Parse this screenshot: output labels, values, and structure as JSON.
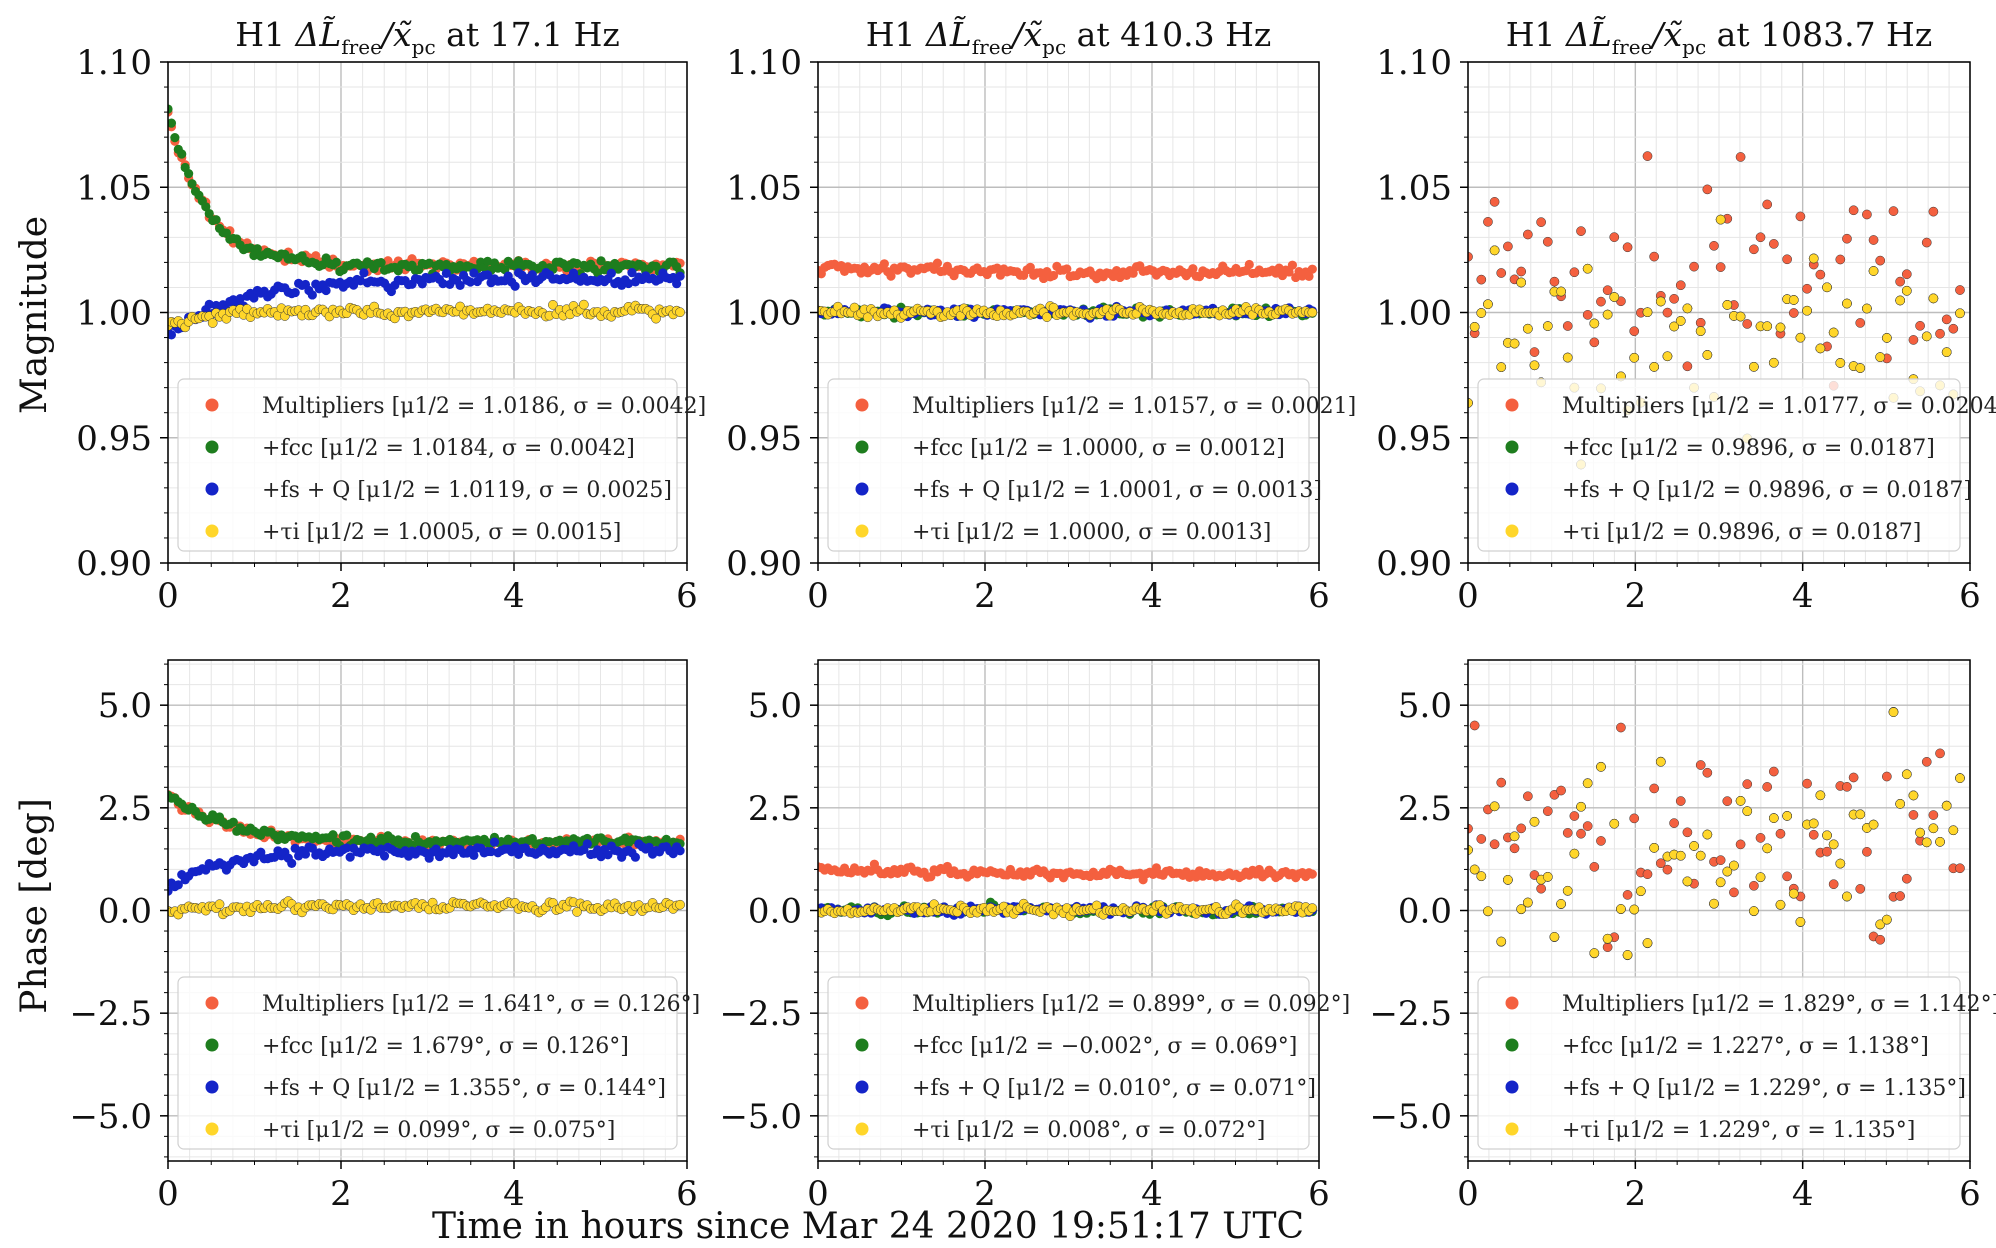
{
  "figure": {
    "xlabel": "Time in hours since Mar 24 2020 19:51:17 UTC",
    "ylabel_magnitude": "Magnitude",
    "ylabel_phase": "Phase [deg]"
  },
  "colors": {
    "multipliers": "#f4603f",
    "fcc": "#1e7d1e",
    "fs_q": "#1424c8",
    "tau": "#ffd62a",
    "grid_major": "#bdbdbd",
    "grid_minor": "#e6e6e6"
  },
  "chart_data": [
    {
      "type": "scatter",
      "title": "H1 ΔL̃_free/x̃_pc at 17.1 Hz",
      "row": "magnitude",
      "ylabel": "Magnitude",
      "xlim": [
        0,
        6
      ],
      "ylim": [
        0.9,
        1.1
      ],
      "xticks": [
        0,
        2,
        4,
        6
      ],
      "xtick_labels": [
        "0",
        "2",
        "4",
        "6"
      ],
      "yticks": [
        0.9,
        0.95,
        1.0,
        1.05,
        1.1
      ],
      "ytick_labels": [
        "0.90",
        "0.95",
        "1.00",
        "1.05",
        "1.10"
      ],
      "series": [
        {
          "name": "Multipliers",
          "legend": "Multipliers [μ1/2 = 1.0186, σ = 0.0042]",
          "color": "#f4603f",
          "plateau": 1.0186,
          "sigma": 0.0042,
          "start": 1.08,
          "decay": 0.45,
          "noise": 0.0012
        },
        {
          "name": "+fcc",
          "legend": "+fcc [μ1/2 = 1.0184, σ = 0.0042]",
          "color": "#1e7d1e",
          "plateau": 1.0184,
          "sigma": 0.0042,
          "start": 1.08,
          "decay": 0.45,
          "noise": 0.0012
        },
        {
          "name": "+fs + Q",
          "legend": "+fs + Q [μ1/2 = 1.0119, σ = 0.0025]",
          "color": "#1424c8",
          "plateau": 1.0135,
          "sigma": 0.0025,
          "start": 0.991,
          "decay": 0.8,
          "noise": 0.0014
        },
        {
          "name": "+τi",
          "legend": "+τi [μ1/2 = 1.0005, σ = 0.0015]",
          "color": "#ffd62a",
          "plateau": 1.0005,
          "sigma": 0.0015,
          "start": 0.995,
          "decay": 0.5,
          "noise": 0.0011
        }
      ]
    },
    {
      "type": "scatter",
      "title": "H1 ΔL̃_free/x̃_pc at 410.3 Hz",
      "row": "magnitude",
      "ylabel": "",
      "xlim": [
        0,
        6
      ],
      "ylim": [
        0.9,
        1.1
      ],
      "xticks": [
        0,
        2,
        4,
        6
      ],
      "xtick_labels": [
        "0",
        "2",
        "4",
        "6"
      ],
      "yticks": [
        0.9,
        0.95,
        1.0,
        1.05,
        1.1
      ],
      "ytick_labels": [
        "0.90",
        "0.95",
        "1.00",
        "1.05",
        "1.10"
      ],
      "series": [
        {
          "name": "Multipliers",
          "legend": "Multipliers [μ1/2 = 1.0157, σ = 0.0021]",
          "color": "#f4603f",
          "plateau": 1.0157,
          "sigma": 0.0021,
          "start": 1.018,
          "decay": 2.0,
          "noise": 0.0012
        },
        {
          "name": "+fcc",
          "legend": "+fcc [μ1/2 = 1.0000, σ = 0.0012]",
          "color": "#1e7d1e",
          "plateau": 1.0,
          "sigma": 0.0012,
          "start": 1.0,
          "decay": 1.0,
          "noise": 0.0009
        },
        {
          "name": "+fs + Q",
          "legend": "+fs + Q [μ1/2 = 1.0001, σ = 0.0013]",
          "color": "#1424c8",
          "plateau": 1.0001,
          "sigma": 0.0013,
          "start": 1.0,
          "decay": 1.0,
          "noise": 0.0009
        },
        {
          "name": "+τi",
          "legend": "+τi [μ1/2 = 1.0000, σ = 0.0013]",
          "color": "#ffd62a",
          "plateau": 1.0,
          "sigma": 0.0013,
          "start": 1.0,
          "decay": 1.0,
          "noise": 0.0009
        }
      ]
    },
    {
      "type": "scatter",
      "title": "H1 ΔL̃_free/x̃_pc at 1083.7 Hz",
      "row": "magnitude",
      "ylabel": "",
      "xlim": [
        0,
        6
      ],
      "ylim": [
        0.9,
        1.1
      ],
      "xticks": [
        0,
        2,
        4,
        6
      ],
      "xtick_labels": [
        "0",
        "2",
        "4",
        "6"
      ],
      "yticks": [
        0.9,
        0.95,
        1.0,
        1.05,
        1.1
      ],
      "ytick_labels": [
        "0.90",
        "0.95",
        "1.00",
        "1.05",
        "1.10"
      ],
      "series": [
        {
          "name": "Multipliers",
          "legend": "Multipliers [μ1/2 = 1.0177, σ = 0.0204]",
          "color": "#f4603f",
          "plateau": 1.0177,
          "sigma": 0.0204,
          "start": 1.0177,
          "decay": 1.0,
          "noise": 0.02
        },
        {
          "name": "+fcc",
          "legend": "+fcc [μ1/2 = 0.9896, σ = 0.0187]",
          "color": "#1e7d1e",
          "plateau": 0.9896,
          "sigma": 0.0187,
          "start": 0.9896,
          "decay": 1.0,
          "noise": 0.0187
        },
        {
          "name": "+fs + Q",
          "legend": "+fs + Q [μ1/2 = 0.9896, σ = 0.0187]",
          "color": "#1424c8",
          "plateau": 0.9896,
          "sigma": 0.0187,
          "start": 0.9896,
          "decay": 1.0,
          "noise": 0.0187
        },
        {
          "name": "+τi",
          "legend": "+τi [μ1/2 = 0.9896, σ = 0.0187]",
          "color": "#ffd62a",
          "plateau": 0.9896,
          "sigma": 0.0187,
          "start": 0.9896,
          "decay": 1.0,
          "noise": 0.0187
        }
      ]
    },
    {
      "type": "scatter",
      "title": "",
      "row": "phase",
      "ylabel": "Phase [deg]",
      "xlim": [
        0,
        6
      ],
      "ylim": [
        -6.1,
        6.1
      ],
      "xticks": [
        0,
        2,
        4,
        6
      ],
      "xtick_labels": [
        "0",
        "2",
        "4",
        "6"
      ],
      "yticks": [
        -5,
        -2.5,
        0,
        2.5,
        5
      ],
      "ytick_labels": [
        "−5.0",
        "−2.5",
        "0.0",
        "2.5",
        "5.0"
      ],
      "series": [
        {
          "name": "Multipliers",
          "legend": "Multipliers [μ1/2 = 1.641°, σ = 0.126°]",
          "color": "#f4603f",
          "plateau": 1.62,
          "sigma": 0.126,
          "start": 2.8,
          "decay": 0.7,
          "noise": 0.06
        },
        {
          "name": "+fcc",
          "legend": "+fcc [μ1/2 = 1.679°, σ = 0.126°]",
          "color": "#1e7d1e",
          "plateau": 1.66,
          "sigma": 0.126,
          "start": 2.85,
          "decay": 0.7,
          "noise": 0.06
        },
        {
          "name": "+fs + Q",
          "legend": "+fs + Q [μ1/2 = 1.355°, σ = 0.144°]",
          "color": "#1424c8",
          "plateau": 1.45,
          "sigma": 0.144,
          "start": 0.55,
          "decay": 0.6,
          "noise": 0.08
        },
        {
          "name": "+τi",
          "legend": "+τi [μ1/2 = 0.099°, σ = 0.075°]",
          "color": "#ffd62a",
          "plateau": 0.099,
          "sigma": 0.075,
          "start": 0.0,
          "decay": 0.5,
          "noise": 0.07
        }
      ]
    },
    {
      "type": "scatter",
      "title": "",
      "row": "phase",
      "ylabel": "",
      "xlim": [
        0,
        6
      ],
      "ylim": [
        -6.1,
        6.1
      ],
      "xticks": [
        0,
        2,
        4,
        6
      ],
      "xtick_labels": [
        "0",
        "2",
        "4",
        "6"
      ],
      "yticks": [
        -5,
        -2.5,
        0,
        2.5,
        5
      ],
      "ytick_labels": [
        "−5.0",
        "−2.5",
        "0.0",
        "2.5",
        "5.0"
      ],
      "series": [
        {
          "name": "Multipliers",
          "legend": "Multipliers [μ1/2 = 0.899°, σ = 0.092°]",
          "color": "#f4603f",
          "plateau": 0.86,
          "sigma": 0.092,
          "start": 1.0,
          "decay": 2.5,
          "noise": 0.06
        },
        {
          "name": "+fcc",
          "legend": "+fcc [μ1/2 = −0.002°, σ = 0.069°]",
          "color": "#1e7d1e",
          "plateau": -0.002,
          "sigma": 0.069,
          "start": -0.002,
          "decay": 1.0,
          "noise": 0.05
        },
        {
          "name": "+fs + Q",
          "legend": "+fs + Q [μ1/2 = 0.010°, σ = 0.071°]",
          "color": "#1424c8",
          "plateau": 0.01,
          "sigma": 0.071,
          "start": 0.01,
          "decay": 1.0,
          "noise": 0.05
        },
        {
          "name": "+τi",
          "legend": "+τi [μ1/2 = 0.008°, σ = 0.072°]",
          "color": "#ffd62a",
          "plateau": 0.008,
          "sigma": 0.072,
          "start": 0.008,
          "decay": 1.0,
          "noise": 0.05
        }
      ]
    },
    {
      "type": "scatter",
      "title": "",
      "row": "phase",
      "ylabel": "",
      "xlim": [
        0,
        6
      ],
      "ylim": [
        -6.1,
        6.1
      ],
      "xticks": [
        0,
        2,
        4,
        6
      ],
      "xtick_labels": [
        "0",
        "2",
        "4",
        "6"
      ],
      "yticks": [
        -5,
        -2.5,
        0,
        2.5,
        5
      ],
      "ytick_labels": [
        "−5.0",
        "−2.5",
        "0.0",
        "2.5",
        "5.0"
      ],
      "series": [
        {
          "name": "Multipliers",
          "legend": "Multipliers [μ1/2 = 1.829°, σ = 1.142°]",
          "color": "#f4603f",
          "plateau": 1.829,
          "sigma": 1.142,
          "start": 1.829,
          "decay": 1.0,
          "noise": 1.142
        },
        {
          "name": "+fcc",
          "legend": "+fcc [μ1/2 = 1.227°, σ = 1.138°]",
          "color": "#1e7d1e",
          "plateau": 1.227,
          "sigma": 1.138,
          "start": 1.227,
          "decay": 1.0,
          "noise": 1.138
        },
        {
          "name": "+fs + Q",
          "legend": "+fs + Q [μ1/2 = 1.229°, σ = 1.135°]",
          "color": "#1424c8",
          "plateau": 1.229,
          "sigma": 1.135,
          "start": 1.229,
          "decay": 1.0,
          "noise": 1.135
        },
        {
          "name": "+τi",
          "legend": "+τi [μ1/2 = 1.229°, σ = 1.135°]",
          "color": "#ffd62a",
          "plateau": 1.229,
          "sigma": 1.135,
          "start": 1.229,
          "decay": 1.0,
          "noise": 1.135
        }
      ]
    }
  ]
}
